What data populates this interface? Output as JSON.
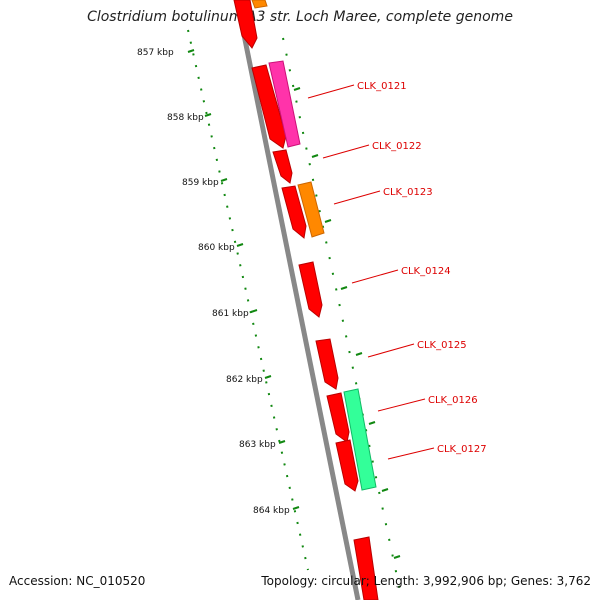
{
  "title": "Clostridium botulinum A3 str. Loch Maree, complete genome",
  "accession_text": "Accession: NC_010520",
  "summary_text": "Topology: circular; Length: 3,992,906 bp; Genes: 3,762",
  "colors": {
    "gene_red": "#ff0000",
    "gene_dark_red": "#c80000",
    "magenta": "#ff33aa",
    "orange": "#ff8800",
    "spring_green": "#33ff99",
    "tick_green": "#118811",
    "label_red": "#dd0000",
    "backbone": "#888888"
  },
  "ticks": [
    {
      "label": "857 kbp"
    },
    {
      "label": "858 kbp"
    },
    {
      "label": "859 kbp"
    },
    {
      "label": "860 kbp"
    },
    {
      "label": "861 kbp"
    },
    {
      "label": "862 kbp"
    },
    {
      "label": "863 kbp"
    },
    {
      "label": "864 kbp"
    }
  ],
  "gene_labels": [
    {
      "label": "CLK_0121"
    },
    {
      "label": "CLK_0122"
    },
    {
      "label": "CLK_0123"
    },
    {
      "label": "CLK_0124"
    },
    {
      "label": "CLK_0125"
    },
    {
      "label": "CLK_0126"
    },
    {
      "label": "CLK_0127"
    }
  ]
}
